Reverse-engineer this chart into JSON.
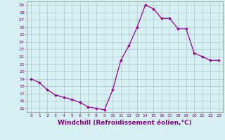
{
  "x": [
    0,
    1,
    2,
    3,
    4,
    5,
    6,
    7,
    8,
    9,
    10,
    11,
    12,
    13,
    14,
    15,
    16,
    17,
    18,
    19,
    20,
    21,
    22,
    23
  ],
  "y": [
    19,
    18.5,
    17.5,
    16.8,
    16.5,
    16.2,
    15.8,
    15.2,
    15.0,
    14.8,
    17.5,
    21.5,
    23.5,
    26.0,
    29.0,
    28.5,
    27.2,
    27.2,
    25.8,
    25.8,
    22.5,
    22.0,
    21.5,
    21.5
  ],
  "line_color": "#990099",
  "marker": "D",
  "marker_size": 1.8,
  "bg_color": "#d4f0f0",
  "grid_color": "#b0c8c8",
  "xlabel": "Windchill (Refroidissement éolien,°C)",
  "xlabel_fontsize": 6.5,
  "ytick_labels": [
    "15",
    "16",
    "17",
    "18",
    "19",
    "20",
    "21",
    "22",
    "23",
    "24",
    "25",
    "26",
    "27",
    "28",
    "29"
  ],
  "ytick_values": [
    15,
    16,
    17,
    18,
    19,
    20,
    21,
    22,
    23,
    24,
    25,
    26,
    27,
    28,
    29
  ],
  "xtick_values": [
    0,
    1,
    2,
    3,
    4,
    5,
    6,
    7,
    8,
    9,
    10,
    11,
    12,
    13,
    14,
    15,
    16,
    17,
    18,
    19,
    20,
    21,
    22,
    23
  ],
  "xlim": [
    -0.5,
    23.5
  ],
  "ylim": [
    14.5,
    29.5
  ],
  "linewidth": 0.9,
  "axis_label_color": "#880088",
  "tick_label_color": "#880088",
  "spine_color": "#888888"
}
